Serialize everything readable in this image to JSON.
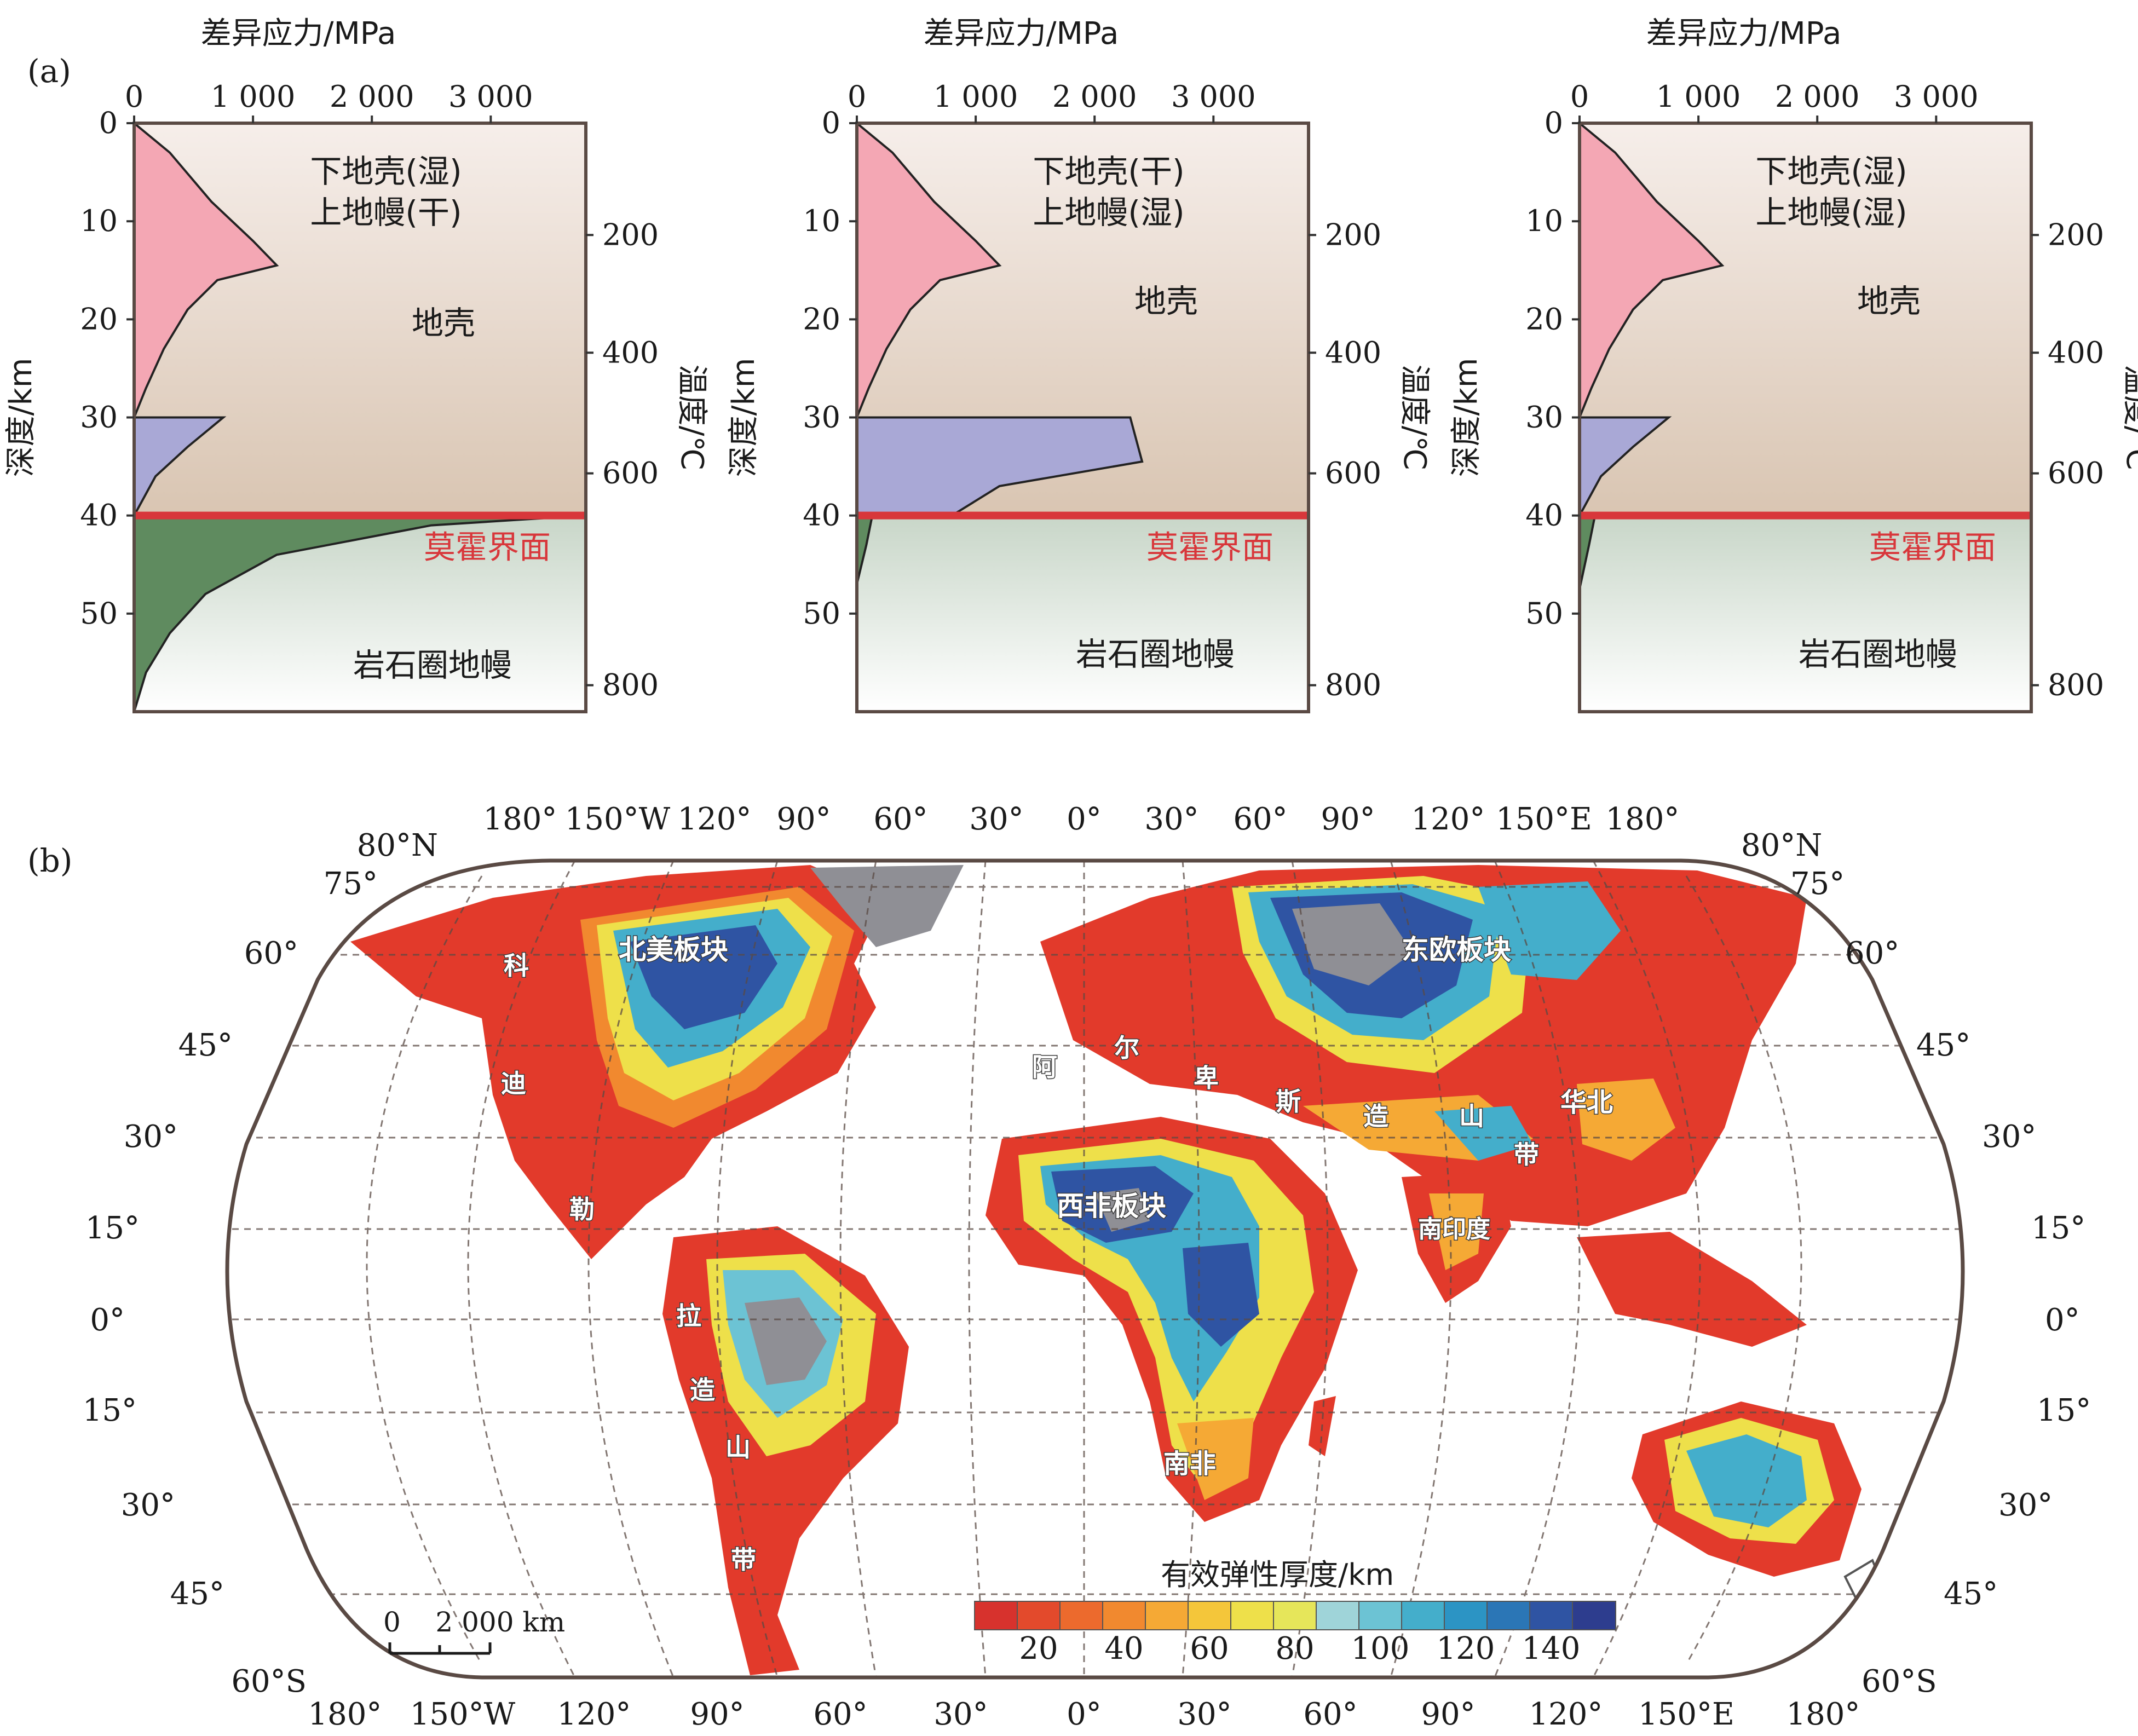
{
  "panel_a": {
    "label": "(a)",
    "depth_axis_label": "深度/km",
    "temp_axis_label": "温度/℃",
    "stress_axis_label": "差异应力/MPa",
    "stress_ticks": [
      "0",
      "1 000",
      "2 000",
      "3 000"
    ],
    "depth_ticks": [
      "0",
      "10",
      "20",
      "30",
      "40",
      "50"
    ],
    "temp_ticks": [
      "200",
      "400",
      "600",
      "800"
    ],
    "moho_label": "莫霍界面",
    "crust_label": "地壳",
    "mantle_label": "岩石圈地幔",
    "colors": {
      "crust_fill": "#f4a7b4",
      "lower_crust_fill": "#a9a8d6",
      "mantle_fill": "#5f8b5f",
      "moho_line": "#d8373b",
      "crust_bg": "#d9c5b2",
      "mantle_bg": "#c8d6c8"
    },
    "chart_data": [
      {
        "type": "area",
        "title": "差异应力/MPa",
        "xlabel": "差异应力/MPa",
        "ylabel": "深度/km",
        "xlim": [
          0,
          3800
        ],
        "ylim": [
          0,
          60
        ],
        "moho_depth": 40,
        "rheology": [
          "下地壳(湿)",
          "上地幔(干)"
        ],
        "series": [
          {
            "depth": [
              0,
              3,
              8,
              12,
              14.5,
              16,
              19,
              23,
              27,
              30
            ],
            "stress": [
              0,
              300,
              650,
              1000,
              1200,
              700,
              450,
              250,
              100,
              0
            ]
          },
          {
            "depth": [
              30,
              30,
              33,
              36,
              40
            ],
            "stress": [
              0,
              750,
              450,
              180,
              0
            ]
          },
          {
            "depth": [
              40,
              40,
              41,
              44,
              48,
              52,
              56,
              60
            ],
            "stress": [
              0,
              3800,
              2500,
              1200,
              600,
              300,
              100,
              0
            ]
          }
        ]
      },
      {
        "type": "area",
        "title": "差异应力/MPa",
        "xlabel": "差异应力/MPa",
        "ylabel": "深度/km",
        "xlim": [
          0,
          3800
        ],
        "ylim": [
          0,
          60
        ],
        "moho_depth": 40,
        "rheology": [
          "下地壳(干)",
          "上地幔(湿)"
        ],
        "series": [
          {
            "depth": [
              0,
              3,
              8,
              12,
              14.5,
              16,
              19,
              23,
              27,
              30
            ],
            "stress": [
              0,
              300,
              650,
              1000,
              1200,
              700,
              450,
              250,
              100,
              0
            ]
          },
          {
            "depth": [
              30,
              30,
              34.5,
              37,
              40
            ],
            "stress": [
              0,
              2300,
              2400,
              1200,
              800
            ]
          },
          {
            "depth": [
              40,
              40,
              43,
              47
            ],
            "stress": [
              0,
              130,
              80,
              0
            ]
          }
        ]
      },
      {
        "type": "area",
        "title": "差异应力/MPa",
        "xlabel": "差异应力/MPa",
        "ylabel": "深度/km",
        "xlim": [
          0,
          3800
        ],
        "ylim": [
          0,
          60
        ],
        "moho_depth": 40,
        "rheology": [
          "下地壳(湿)",
          "上地幔(湿)"
        ],
        "series": [
          {
            "depth": [
              0,
              3,
              8,
              12,
              14.5,
              16,
              19,
              23,
              27,
              30
            ],
            "stress": [
              0,
              300,
              650,
              1000,
              1200,
              700,
              450,
              250,
              100,
              0
            ]
          },
          {
            "depth": [
              30,
              30,
              33,
              36,
              40
            ],
            "stress": [
              0,
              750,
              450,
              180,
              0
            ]
          },
          {
            "depth": [
              40,
              40,
              43,
              47.5
            ],
            "stress": [
              0,
              130,
              80,
              0
            ]
          }
        ]
      }
    ]
  },
  "panel_b": {
    "label": "(b)",
    "top_lon_labels": [
      "180°",
      "150°W",
      "120°",
      "90°",
      "60°",
      "30°",
      "0°",
      "30°",
      "60°",
      "90°",
      "120°",
      "150°E",
      "180°"
    ],
    "bottom_lon_labels": [
      "180°",
      "150°W",
      "120°",
      "90°",
      "60°",
      "30°",
      "0°",
      "30°",
      "60°",
      "90°",
      "120°",
      "150°E",
      "180°"
    ],
    "lat_labels_left": [
      "80°N",
      "75°",
      "60°",
      "45°",
      "30°",
      "15°",
      "0°",
      "15°",
      "30°",
      "45°",
      "60°S"
    ],
    "lat_labels_right": [
      "80°N",
      "75°",
      "60°",
      "45°",
      "30°",
      "15°",
      "0°",
      "15°",
      "30°",
      "45°",
      "60°S"
    ],
    "scale_label": "0    2 000 km",
    "colorbar": {
      "title": "有效弹性厚度/km",
      "ticks": [
        "20",
        "40",
        "60",
        "80",
        "100",
        "120",
        "140"
      ],
      "colors": [
        "#d7322d",
        "#e34a2c",
        "#ec6a2d",
        "#f1892f",
        "#f5a935",
        "#f4c63a",
        "#eee04a",
        "#e6e65a",
        "#9fd4d9",
        "#6cc3d4",
        "#44aecb",
        "#2c94c4",
        "#2b76b6",
        "#2f54a3",
        "#2d3d8e"
      ]
    },
    "region_labels": {
      "north_america": "北美板块",
      "east_europe": "东欧板块",
      "west_africa": "西非板块",
      "south_africa": "南非",
      "north_china": "华北",
      "south_india": "南印度",
      "cordillera": [
        "科",
        "迪",
        "勒"
      ],
      "andes": [
        "拉",
        "造",
        "山",
        "带"
      ],
      "alpine": [
        "阿",
        "尔",
        "卑",
        "斯",
        "造",
        "山",
        "带"
      ]
    }
  }
}
